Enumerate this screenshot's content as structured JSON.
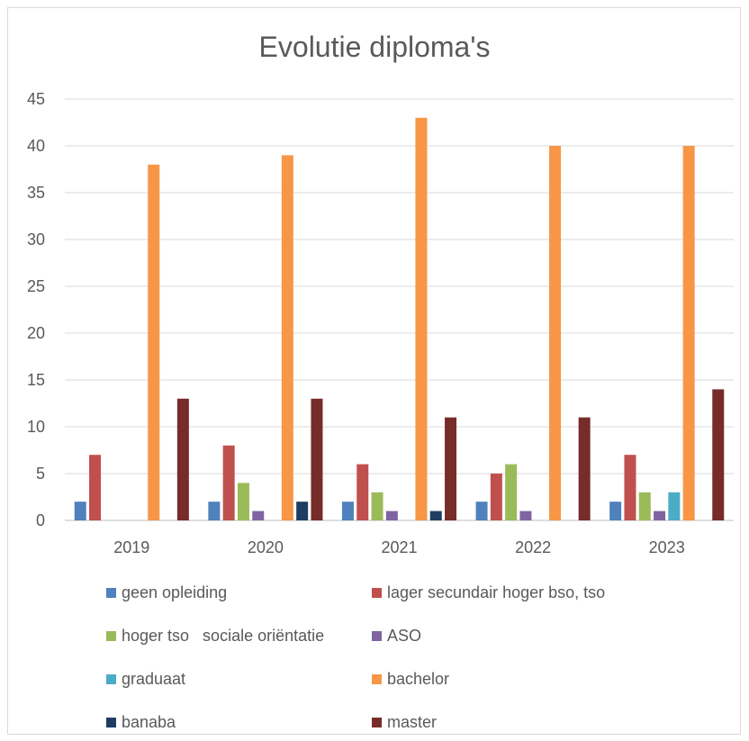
{
  "chart_data": {
    "type": "bar",
    "title": "Evolutie diploma's",
    "categories": [
      "2019",
      "2020",
      "2021",
      "2022",
      "2023"
    ],
    "ylim": [
      0,
      45
    ],
    "yticks": [
      "0",
      "5",
      "10",
      "15",
      "20",
      "25",
      "30",
      "35",
      "40",
      "45"
    ],
    "grid": true,
    "legend_position": "bottom",
    "series": [
      {
        "name": "geen opleiding",
        "color": "#4f81bd",
        "values": [
          2,
          2,
          2,
          2,
          2
        ]
      },
      {
        "name": "lager secundair hoger bso, tso",
        "color": "#c0504d",
        "values": [
          7,
          8,
          6,
          5,
          7
        ]
      },
      {
        "name": "hoger tso   sociale oriëntatie",
        "color": "#9bbb59",
        "values": [
          0,
          4,
          3,
          6,
          3
        ]
      },
      {
        "name": "ASO",
        "color": "#8064a2",
        "values": [
          0,
          1,
          1,
          1,
          1
        ]
      },
      {
        "name": "graduaat",
        "color": "#4bacc6",
        "values": [
          0,
          0,
          0,
          0,
          3
        ]
      },
      {
        "name": "bachelor",
        "color": "#f79646",
        "values": [
          38,
          39,
          43,
          40,
          40
        ]
      },
      {
        "name": "banaba",
        "color": "#1f3d63",
        "values": [
          0,
          2,
          1,
          0,
          0
        ]
      },
      {
        "name": "master",
        "color": "#772c2a",
        "values": [
          13,
          13,
          11,
          11,
          14
        ]
      }
    ]
  }
}
